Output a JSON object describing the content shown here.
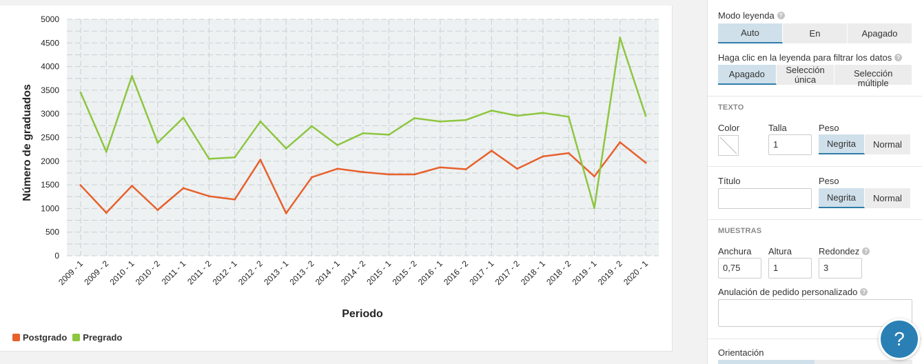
{
  "chart_data": {
    "type": "line",
    "categories": [
      "2009 - 1",
      "2009 - 2",
      "2010 - 1",
      "2010 - 2",
      "2011 - 1",
      "2011 - 2",
      "2012 - 1",
      "2012 - 2",
      "2013 - 1",
      "2013 - 2",
      "2014 - 1",
      "2014 - 2",
      "2015 - 1",
      "2015 - 2",
      "2016 - 1",
      "2016 - 2",
      "2017 - 1",
      "2017 - 2",
      "2018 - 1",
      "2018 - 2",
      "2019 - 1",
      "2019 - 2",
      "2020 - 1"
    ],
    "series": [
      {
        "name": "Postgrado",
        "color": "#e8602c",
        "values": [
          1490,
          910,
          1480,
          970,
          1430,
          1260,
          1190,
          2030,
          900,
          1660,
          1840,
          1770,
          1720,
          1720,
          1870,
          1830,
          2220,
          1840,
          2100,
          2170,
          1680,
          2400,
          1970
        ]
      },
      {
        "name": "Pregrado",
        "color": "#8dc63f",
        "values": [
          3450,
          2200,
          3800,
          2390,
          2920,
          2050,
          2080,
          2840,
          2270,
          2740,
          2340,
          2590,
          2560,
          2910,
          2840,
          2870,
          3070,
          2960,
          3020,
          2940,
          1010,
          4610,
          2960
        ]
      }
    ],
    "y_ticks": [
      "0",
      "500",
      "1000",
      "1500",
      "2000",
      "2500",
      "3000",
      "3500",
      "4000",
      "4500",
      "5000"
    ],
    "ylim": [
      0,
      5000
    ],
    "xlabel": "Periodo",
    "ylabel": "Número de graduados",
    "grid": true,
    "legend": "bottom-left"
  },
  "panel": {
    "legend_mode": {
      "label": "Modo leyenda",
      "options": [
        "Auto",
        "En",
        "Apagado"
      ],
      "selected": "Auto"
    },
    "legend_filter": {
      "label": "Haga clic en la leyenda para filtrar los datos",
      "options": [
        "Apagado",
        "Selección única",
        "Selección múltiple"
      ],
      "selected": "Apagado"
    },
    "text_section": {
      "title": "TEXTO",
      "color_label": "Color",
      "size_label": "Talla",
      "size_value": "1",
      "weight_label": "Peso",
      "weight_options": [
        "Negrita",
        "Normal"
      ],
      "weight_selected": "Negrita"
    },
    "title_section": {
      "title_label": "Título",
      "title_value": "",
      "weight_label": "Peso",
      "weight_options": [
        "Negrita",
        "Normal"
      ],
      "weight_selected": "Negrita"
    },
    "samples_section": {
      "title": "MUESTRAS",
      "width_label": "Anchura",
      "width_value": "0,75",
      "height_label": "Altura",
      "height_value": "1",
      "round_label": "Redondez",
      "round_value": "3",
      "order_label": "Anulación de pedido personalizado",
      "order_value": ""
    },
    "orientation_label": "Orientación"
  },
  "help_fab": "?",
  "help_icon_glyph": "?"
}
